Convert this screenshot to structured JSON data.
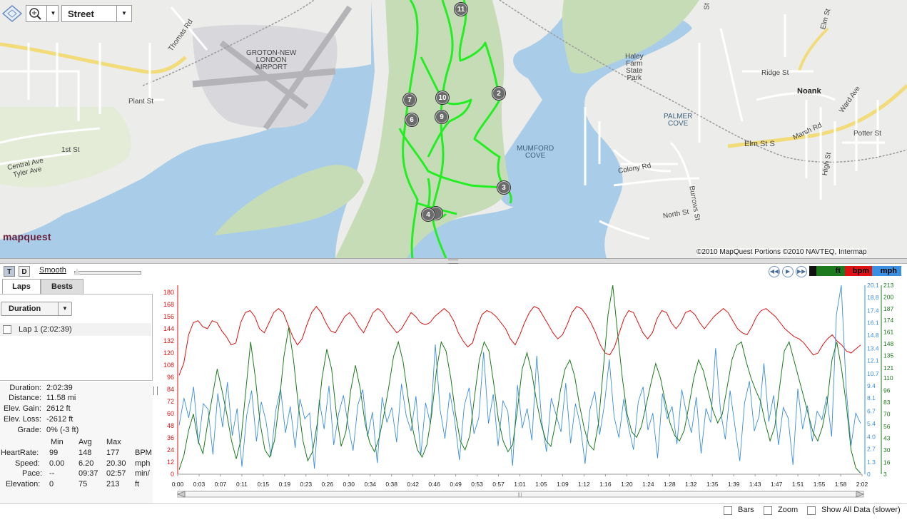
{
  "map": {
    "map_type": "Street",
    "brand": "mapquest",
    "copyright": "©2010 MapQuest  Portions ©2010 NAVTEQ, Intermap",
    "labels": {
      "airport": [
        "GROTON-NEW",
        "LONDON",
        "AIRPORT"
      ],
      "thomas_rd": "Thomas Rd",
      "plant_st": "Plant St",
      "first_st": "1st St",
      "central_ave": "Central Ave",
      "tyler_ave": "Tyler Ave",
      "haley": [
        "Haley",
        "Farm",
        "State",
        "Park"
      ],
      "mumford": [
        "MUMFORD",
        "COVE"
      ],
      "palmer": [
        "PALMER",
        "COVE"
      ],
      "noank": "Noank",
      "ridge_st": "Ridge St",
      "ward_ave": "Ward Ave",
      "elm_st": "Elm St",
      "elm_st_s": "Elm St S",
      "marsh_rd": "Marsh Rd",
      "potter_st": "Potter St",
      "high_st": "High St",
      "colony_rd": "Colony Rd",
      "north_st": "North St",
      "burrows_st": "Burrows St",
      "top_st": "St"
    },
    "markers": [
      "11",
      "2",
      "10",
      "7",
      "9",
      "6",
      "3",
      "4"
    ],
    "colors": {
      "water": "#a9cde8",
      "land": "#ececea",
      "park": "#c6dcb7",
      "route": "#22ee22",
      "road": "#ffffff",
      "highway": "#f2dc7a"
    }
  },
  "panel": {
    "view_buttons": [
      "T",
      "D"
    ],
    "smooth_label": "Smooth",
    "tabs": [
      "Laps",
      "Bests"
    ],
    "duration_dropdown": "Duration",
    "laps": [
      "Lap 1 (2:02:39)"
    ],
    "stats": [
      {
        "k": "Duration:",
        "v": "2:02:39"
      },
      {
        "k": "Distance:",
        "v": "11.58 mi"
      },
      {
        "k": "Elev. Gain:",
        "v": "2612 ft"
      },
      {
        "k": "Elev. Loss:",
        "v": "-2612 ft"
      },
      {
        "k": "Grade:",
        "v": "0% (-3 ft)"
      }
    ],
    "table": {
      "headers": [
        "Min",
        "Avg",
        "Max"
      ],
      "rows": [
        {
          "label": "HeartRate:",
          "min": "99",
          "avg": "148",
          "max": "177",
          "unit": "BPM"
        },
        {
          "label": "Speed:",
          "min": "0.00",
          "avg": "6.20",
          "max": "20.30",
          "unit": "mph"
        },
        {
          "label": "Pace:",
          "min": "--",
          "avg": "09:37",
          "max": "02:57",
          "unit": "min/"
        },
        {
          "label": "Elevation:",
          "min": "0",
          "avg": "75",
          "max": "213",
          "unit": "ft"
        }
      ]
    }
  },
  "chart_controls": {
    "units": [
      "ft",
      "bpm",
      "mph"
    ],
    "colors": {
      "ft": "#1c7a1c",
      "bpm": "#dd1111",
      "mph": "#3a8fe0"
    }
  },
  "chart_data": {
    "type": "line",
    "x_ticks": [
      "0:00",
      "0:03",
      "0:07",
      "0:11",
      "0:15",
      "0:19",
      "0:23",
      "0:26",
      "0:30",
      "0:34",
      "0:38",
      "0:42",
      "0:46",
      "0:49",
      "0:53",
      "0:57",
      "1:01",
      "1:05",
      "1:09",
      "1:12",
      "1:16",
      "1:20",
      "1:24",
      "1:28",
      "1:32",
      "1:35",
      "1:39",
      "1:43",
      "1:47",
      "1:51",
      "1:55",
      "1:58",
      "2:02"
    ],
    "y_left_ticks": [
      "0",
      "12",
      "24",
      "36",
      "48",
      "60",
      "72",
      "84",
      "96",
      "108",
      "120",
      "132",
      "144",
      "156",
      "168",
      "180"
    ],
    "y_speed_ticks": [
      "0",
      "1.3",
      "2.7",
      "4.0",
      "5.4",
      "6.7",
      "8.1",
      "9.4",
      "10.7",
      "12.1",
      "13.4",
      "14.8",
      "16.1",
      "17.4",
      "18.8",
      "20.1"
    ],
    "y_elev_ticks": [
      "3",
      "16",
      "30",
      "43",
      "56",
      "70",
      "83",
      "96",
      "110",
      "121",
      "135",
      "148",
      "161",
      "174",
      "187",
      "200",
      "213"
    ],
    "ylim_left": [
      0,
      180
    ],
    "ylim_speed": [
      0,
      20.1
    ],
    "ylim_elev": [
      3,
      213
    ],
    "series": [
      {
        "unit": "bpm",
        "color": "#dd1111",
        "values": [
          98,
          110,
          138,
          150,
          152,
          146,
          144,
          152,
          150,
          142,
          136,
          128,
          130,
          150,
          160,
          162,
          156,
          144,
          140,
          150,
          160,
          164,
          160,
          148,
          136,
          128,
          134,
          148,
          160,
          166,
          160,
          150,
          142,
          140,
          148,
          156,
          160,
          154,
          146,
          140,
          150,
          160,
          164,
          160,
          152,
          146,
          140,
          144,
          152,
          160,
          156,
          150,
          148,
          150,
          156,
          160,
          164,
          160,
          152,
          140,
          132,
          126,
          130,
          146,
          158,
          162,
          160,
          156,
          150,
          144,
          134,
          128,
          138,
          150,
          160,
          166,
          164,
          156,
          148,
          140,
          134,
          138,
          148,
          160,
          166,
          164,
          158,
          150,
          140,
          128,
          120,
          118,
          126,
          140,
          154,
          162,
          160,
          150,
          140,
          134,
          140,
          154,
          162,
          160,
          150,
          144,
          150,
          160,
          162,
          158,
          150,
          144,
          150,
          156,
          160,
          164,
          160,
          152,
          144,
          140,
          138,
          146,
          156,
          162,
          164,
          160,
          156,
          150,
          144,
          140,
          136,
          134,
          130,
          124,
          118,
          120,
          128,
          134,
          138,
          132,
          128,
          122,
          120,
          124,
          128
        ]
      },
      {
        "unit": "mph",
        "color": "#3a8fe0",
        "values": [
          5.2,
          8.1,
          6.0,
          9.3,
          3.2,
          7.5,
          6.9,
          2.1,
          8.6,
          5.0,
          9.8,
          4.1,
          7.0,
          0.8,
          6.3,
          8.9,
          3.5,
          7.7,
          5.6,
          1.9,
          6.8,
          9.1,
          4.4,
          7.2,
          2.8,
          8.0,
          5.9,
          6.5,
          0.6,
          7.9,
          4.8,
          9.4,
          3.1,
          6.4,
          8.4,
          5.1,
          2.5,
          7.4,
          9.0,
          4.0,
          6.6,
          1.2,
          8.2,
          5.5,
          7.1,
          3.4,
          9.6,
          6.2,
          4.6,
          8.3,
          2.0,
          7.6,
          5.3,
          13.8,
          6.9,
          3.8,
          8.7,
          5.8,
          1.5,
          7.3,
          9.2,
          4.3,
          6.0,
          13.0,
          5.4,
          8.5,
          3.0,
          7.8,
          6.7,
          0.9,
          9.5,
          4.9,
          7.0,
          3.6,
          12.6,
          5.7,
          2.4,
          8.1,
          6.3,
          4.5,
          9.7,
          3.3,
          7.5,
          5.2,
          1.1,
          6.9,
          8.8,
          4.2,
          7.4,
          12.2,
          6.1,
          3.9,
          8.0,
          5.0,
          2.6,
          7.7,
          9.3,
          4.7,
          6.5,
          1.7,
          8.6,
          5.9,
          7.2,
          3.2,
          9.0,
          6.4,
          4.4,
          8.2,
          2.2,
          7.0,
          5.5,
          13.4,
          6.8,
          3.7,
          8.9,
          5.1,
          1.4,
          7.6,
          9.9,
          4.6,
          6.2,
          11.8,
          5.6,
          8.4,
          3.1,
          7.1,
          6.0,
          1.0,
          9.1,
          4.8,
          7.3,
          3.5,
          6.7,
          5.8,
          8.3,
          4.0,
          17.0,
          20.1,
          9.2,
          3.0,
          6.5,
          5.4
        ]
      },
      {
        "unit": "ft",
        "color": "#1c7a1c",
        "values": [
          8,
          24,
          52,
          70,
          40,
          26,
          60,
          90,
          120,
          96,
          70,
          40,
          20,
          42,
          96,
          150,
          110,
          60,
          30,
          22,
          40,
          82,
          134,
          166,
          130,
          80,
          40,
          18,
          28,
          60,
          110,
          142,
          120,
          70,
          34,
          50,
          96,
          124,
          98,
          60,
          38,
          28,
          44,
          70,
          100,
          134,
          150,
          128,
          90,
          54,
          30,
          22,
          36,
          70,
          118,
          150,
          140,
          110,
          70,
          40,
          30,
          46,
          90,
          130,
          150,
          140,
          104,
          64,
          40,
          28,
          36,
          76,
          120,
          138,
          116,
          84,
          58,
          40,
          34,
          60,
          96,
          120,
          130,
          112,
          80,
          54,
          36,
          30,
          60,
          120,
          180,
          213,
          160,
          110,
          70,
          50,
          44,
          56,
          80,
          104,
          126,
          110,
          84,
          60,
          46,
          40,
          52,
          80,
          110,
          130,
          118,
          96,
          74,
          60,
          70,
          100,
          130,
          146,
          150,
          128,
          110,
          96,
          84,
          60,
          40,
          56,
          100,
          140,
          150,
          130,
          110,
          90,
          70,
          50,
          40,
          56,
          84,
          130,
          150,
          120,
          80,
          30,
          10,
          4
        ]
      }
    ]
  }
}
